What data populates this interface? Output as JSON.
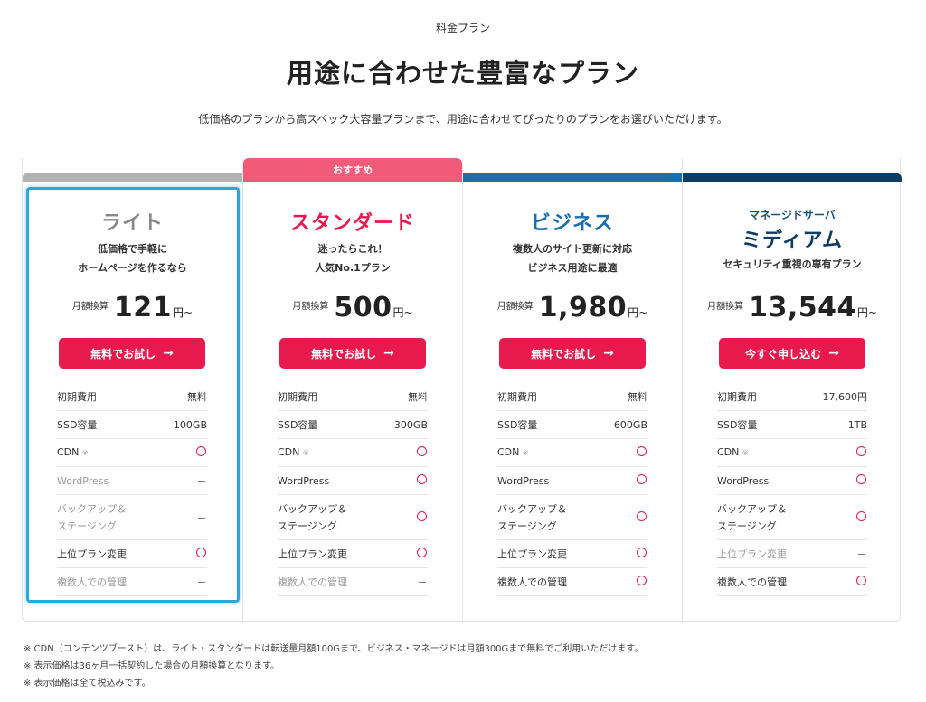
{
  "header": {
    "eyebrow": "料金プラン",
    "title": "用途に合わせた豊富なプラン",
    "lead": "低価格のプランから高スペック大容量プランまで、用途に合わせてぴったりのプランをお選びいただけます。"
  },
  "colors": {
    "accent": "#e8194d",
    "lite_bar": "#b3b3b3",
    "standard_bar": "#f25a7a",
    "business_bar": "#1a6fb0",
    "managed_bar": "#0e3c63",
    "focus": "#29a8e0"
  },
  "plans": [
    {
      "key": "lite",
      "sub": "",
      "name": "ライト",
      "name_color": "#888888",
      "desc": [
        "低価格で手軽に",
        "ホームページを作るなら"
      ],
      "price_label": "月額換算",
      "price": "121",
      "price_unit": "円~",
      "cta": "無料でお試し",
      "rows": [
        {
          "label": "初期費用",
          "value": "無料",
          "kind": "text",
          "dim": false
        },
        {
          "label": "SSD容量",
          "value": "100GB",
          "kind": "text",
          "dim": false
        },
        {
          "label": "CDN",
          "value": "circle",
          "kind": "circle",
          "dim": false,
          "note": "※"
        },
        {
          "label": "WordPress",
          "value": "dash",
          "kind": "dash",
          "dim": true
        },
        {
          "label": "バックアップ＆\nステージング",
          "value": "dash",
          "kind": "dash",
          "dim": true,
          "tall": true
        },
        {
          "label": "上位プラン変更",
          "value": "circle",
          "kind": "circle",
          "dim": false
        },
        {
          "label": "複数人での管理",
          "value": "dash",
          "kind": "dash",
          "dim": true
        }
      ]
    },
    {
      "key": "std",
      "badge": "おすすめ",
      "sub": "",
      "name": "スタンダード",
      "name_color": "#e8194d",
      "desc": [
        "迷ったらこれ！",
        "人気No.1プラン"
      ],
      "price_label": "月額換算",
      "price": "500",
      "price_unit": "円~",
      "cta": "無料でお試し",
      "rows": [
        {
          "label": "初期費用",
          "value": "無料",
          "kind": "text",
          "dim": false
        },
        {
          "label": "SSD容量",
          "value": "300GB",
          "kind": "text",
          "dim": false
        },
        {
          "label": "CDN",
          "value": "circle",
          "kind": "circle",
          "dim": false,
          "note": "※"
        },
        {
          "label": "WordPress",
          "value": "circle",
          "kind": "circle",
          "dim": false
        },
        {
          "label": "バックアップ＆\nステージング",
          "value": "circle",
          "kind": "circle",
          "dim": false,
          "tall": true
        },
        {
          "label": "上位プラン変更",
          "value": "circle",
          "kind": "circle",
          "dim": false
        },
        {
          "label": "複数人での管理",
          "value": "dash",
          "kind": "dash",
          "dim": true
        }
      ]
    },
    {
      "key": "biz",
      "sub": "",
      "name": "ビジネス",
      "name_color": "#1a6fb0",
      "desc": [
        "複数人のサイト更新に対応",
        "ビジネス用途に最適"
      ],
      "price_label": "月額換算",
      "price": "1,980",
      "price_unit": "円~",
      "cta": "無料でお試し",
      "rows": [
        {
          "label": "初期費用",
          "value": "無料",
          "kind": "text",
          "dim": false
        },
        {
          "label": "SSD容量",
          "value": "600GB",
          "kind": "text",
          "dim": false
        },
        {
          "label": "CDN",
          "value": "circle",
          "kind": "circle",
          "dim": false,
          "note": "※"
        },
        {
          "label": "WordPress",
          "value": "circle",
          "kind": "circle",
          "dim": false
        },
        {
          "label": "バックアップ＆\nステージング",
          "value": "circle",
          "kind": "circle",
          "dim": false,
          "tall": true
        },
        {
          "label": "上位プラン変更",
          "value": "circle",
          "kind": "circle",
          "dim": false
        },
        {
          "label": "複数人での管理",
          "value": "circle",
          "kind": "circle",
          "dim": false
        }
      ]
    },
    {
      "key": "mgd",
      "sub": "マネージドサーバ",
      "name": "ミディアム",
      "name_color": "#0e3c63",
      "desc": [
        "セキュリティ重視の専有プラン"
      ],
      "price_label": "月額換算",
      "price": "13,544",
      "price_unit": "円~",
      "cta": "今すぐ申し込む",
      "rows": [
        {
          "label": "初期費用",
          "value": "17,600円",
          "kind": "text",
          "dim": false
        },
        {
          "label": "SSD容量",
          "value": "1TB",
          "kind": "text",
          "dim": false
        },
        {
          "label": "CDN",
          "value": "circle",
          "kind": "circle",
          "dim": false,
          "note": "※"
        },
        {
          "label": "WordPress",
          "value": "circle",
          "kind": "circle",
          "dim": false
        },
        {
          "label": "バックアップ＆\nステージング",
          "value": "circle",
          "kind": "circle",
          "dim": false,
          "tall": true
        },
        {
          "label": "上位プラン変更",
          "value": "dash",
          "kind": "dash",
          "dim": true
        },
        {
          "label": "複数人での管理",
          "value": "circle",
          "kind": "circle",
          "dim": false
        }
      ]
    }
  ],
  "footnotes": [
    "※ CDN（コンテンツブースト）は、ライト・スタンダードは転送量月額100Gまで、ビジネス・マネージドは月額300Gまで無料でご利用いただけます。",
    "※ 表示価格は36ヶ月一括契約した場合の月額換算となります。",
    "※ 表示価格は全て税込みです。"
  ]
}
